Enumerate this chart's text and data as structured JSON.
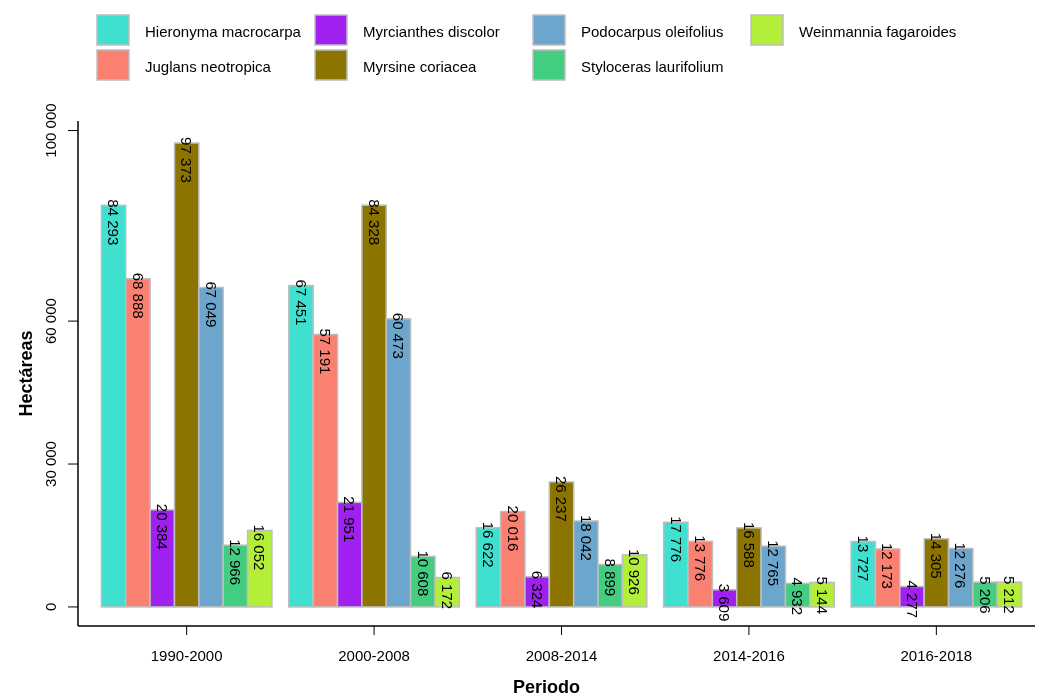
{
  "chart_data": {
    "type": "bar",
    "xlabel": "Periodo",
    "ylabel": "Hectáreas",
    "categories": [
      "1990-2000",
      "2000-2008",
      "2008-2014",
      "2014-2016",
      "2016-2018"
    ],
    "ylim": [
      -4000,
      102000
    ],
    "yticks": [
      0,
      {
        "value": 30000,
        "label": "30 000"
      },
      {
        "value": 60000,
        "label": "60 000"
      },
      {
        "value": 100000,
        "label": "100 000"
      }
    ],
    "legend": "top",
    "grid": false,
    "series": [
      {
        "name": "Hieronyma macrocarpa",
        "color": "#40e0d0",
        "values": [
          84293,
          67451,
          16622,
          17776,
          13727
        ],
        "value_labels": [
          "84 293",
          "67 451",
          "16 622",
          "17 776",
          "13 727"
        ]
      },
      {
        "name": "Juglans neotropica",
        "color": "#fa8072",
        "values": [
          68888,
          57191,
          20016,
          13776,
          12173
        ],
        "value_labels": [
          "68 888",
          "57 191",
          "20 016",
          "13 776",
          "12 173"
        ]
      },
      {
        "name": "Myrcianthes discolor",
        "color": "#a020f0",
        "values": [
          20384,
          21951,
          6324,
          3609,
          4277
        ],
        "value_labels": [
          "20 384",
          "21 951",
          "6 324",
          "3 609",
          "4 277"
        ]
      },
      {
        "name": "Myrsine coriacea",
        "color": "#8b7500",
        "values": [
          97373,
          84328,
          26237,
          16588,
          14305
        ],
        "value_labels": [
          "97 373",
          "84 328",
          "26 237",
          "16 588",
          "14 305"
        ]
      },
      {
        "name": "Podocarpus oleifolius",
        "color": "#6ca6cd",
        "values": [
          67049,
          60473,
          18042,
          12765,
          12276
        ],
        "value_labels": [
          "67 049",
          "60 473",
          "18 042",
          "12 765",
          "12 276"
        ]
      },
      {
        "name": "Styloceras laurifolium",
        "color": "#43cd80",
        "values": [
          12966,
          10608,
          8899,
          4932,
          5206
        ],
        "value_labels": [
          "12 966",
          "10 608",
          "8 899",
          "4 932",
          "5 206"
        ]
      },
      {
        "name": "Weinmannia fagaroides",
        "color": "#b3ee3a",
        "values": [
          16052,
          6172,
          10926,
          5144,
          5212
        ],
        "value_labels": [
          "16 052",
          "6 172",
          "10 926",
          "5 144",
          "5 212"
        ]
      }
    ]
  }
}
